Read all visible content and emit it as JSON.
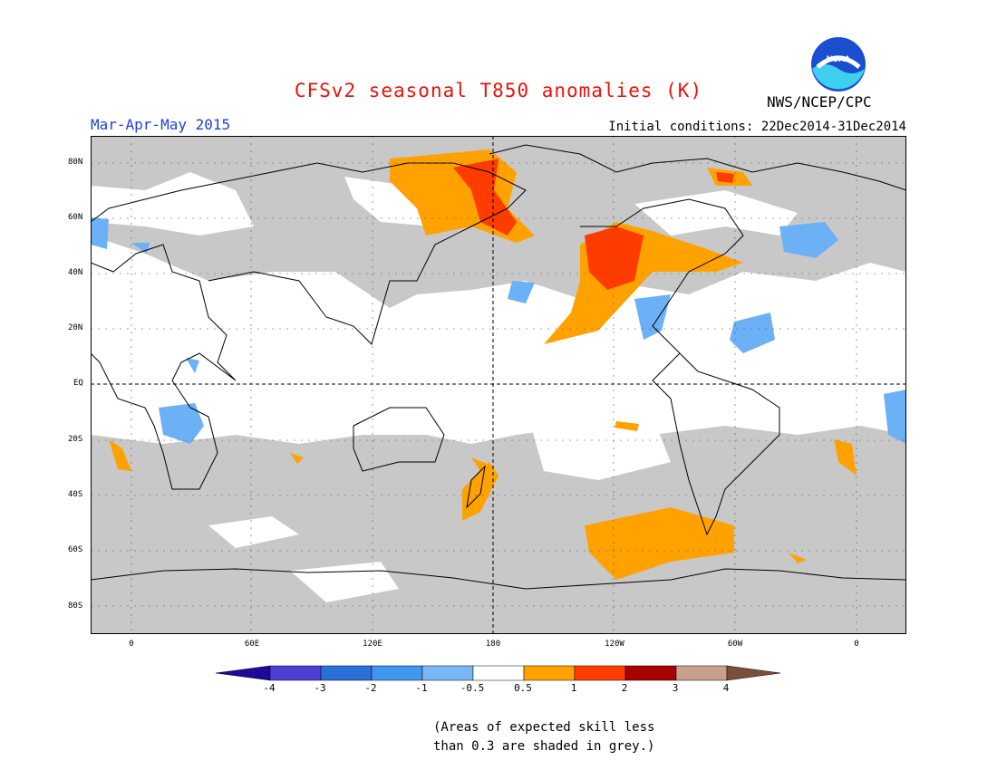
{
  "title": "CFSv2 seasonal T850 anomalies (K)",
  "season": "Mar-Apr-May 2015",
  "initial_conditions": "Initial conditions: 22Dec2014-31Dec2014",
  "agency": "NWS/NCEP/CPC",
  "logo_text": "NOAA",
  "lat_labels": [
    "80N",
    "60N",
    "40N",
    "20N",
    "EQ",
    "20S",
    "40S",
    "60S",
    "80S"
  ],
  "lon_labels": [
    "0",
    "60E",
    "120E",
    "180",
    "120W",
    "60W",
    "0"
  ],
  "colorbar": {
    "ticks": [
      "-4",
      "-3",
      "-2",
      "-1",
      "-0.5",
      "0.5",
      "1",
      "2",
      "3",
      "4"
    ],
    "colors": [
      "#1e0a9a",
      "#4c3fd0",
      "#2a6fd8",
      "#3e96ee",
      "#7ab8f5",
      "#ffffff",
      "#ffa200",
      "#ff3c00",
      "#a80000",
      "#c9a08c",
      "#7a4e3a"
    ]
  },
  "note_line1": "(Areas of expected skill less",
  "note_line2": "than 0.3 are shaded in grey.)",
  "colors": {
    "grey": "#c8c8c8",
    "orange": "#ffa200",
    "red": "#ff3c00",
    "blue": "#6cb0f5",
    "land_line": "#000000"
  }
}
